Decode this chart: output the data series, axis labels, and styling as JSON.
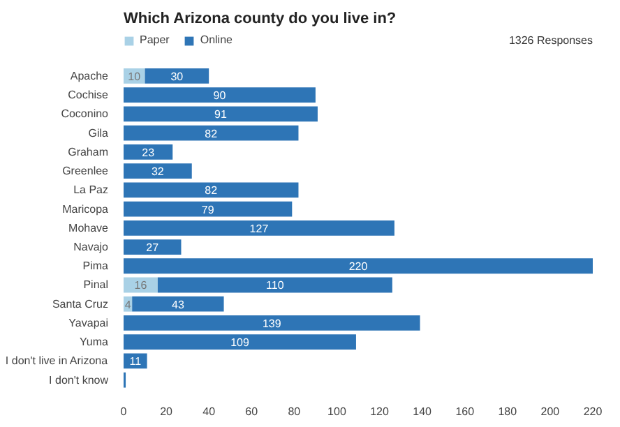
{
  "chart_data": {
    "type": "bar",
    "orientation": "horizontal",
    "stacked": true,
    "title": "Which Arizona county do you live in?",
    "annotations": [
      "1326 Responses"
    ],
    "categories": [
      "Apache",
      "Cochise",
      "Coconino",
      "Gila",
      "Graham",
      "Greenlee",
      "La Paz",
      "Maricopa",
      "Mohave",
      "Navajo",
      "Pima",
      "Pinal",
      "Santa Cruz",
      "Yavapai",
      "Yuma",
      "I don't live in Arizona",
      "I don't know"
    ],
    "series": [
      {
        "name": "Paper",
        "color": "#a9d1e6",
        "values": [
          10,
          null,
          null,
          null,
          null,
          null,
          null,
          null,
          null,
          null,
          null,
          16,
          4,
          null,
          null,
          null,
          null
        ],
        "value_labels": [
          "10",
          null,
          null,
          null,
          null,
          null,
          null,
          null,
          null,
          null,
          null,
          "16",
          "4",
          null,
          null,
          null,
          null
        ]
      },
      {
        "name": "Online",
        "color": "#2e75b6",
        "values": [
          30,
          90,
          91,
          82,
          23,
          32,
          82,
          79,
          127,
          27,
          220,
          110,
          43,
          139,
          109,
          11,
          1
        ],
        "value_labels": [
          "30",
          "90",
          "91",
          "82",
          "23",
          "32",
          "82",
          "79",
          "127",
          "27",
          "220",
          "110",
          "43",
          "139",
          "109",
          "11",
          null
        ]
      }
    ],
    "xlim": [
      0,
      220
    ],
    "xticks": [
      0,
      20,
      40,
      60,
      80,
      100,
      120,
      140,
      160,
      180,
      200,
      220
    ],
    "grid": false,
    "legend": "top left"
  }
}
